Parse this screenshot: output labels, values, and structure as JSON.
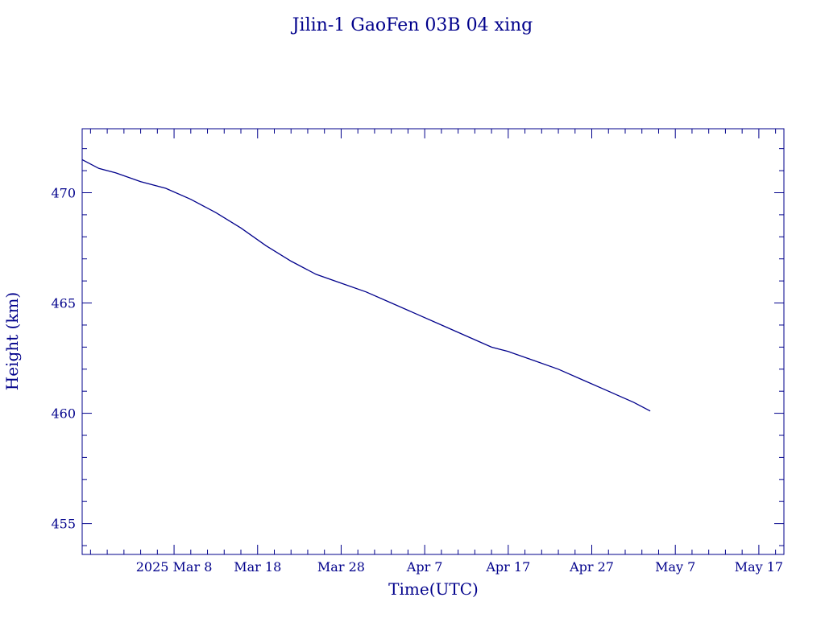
{
  "chart_data": {
    "type": "line",
    "title": "Jilin-1 GaoFen 03B 04 xing",
    "xlabel": "Time(UTC)",
    "ylabel": "Height (km)",
    "x_ticks": [
      "2025 Mar  8",
      "Mar 18",
      "Mar 28",
      "Apr  7",
      "Apr 17",
      "Apr 27",
      "May  7",
      "May 17"
    ],
    "xlim": [
      "2025-02-25",
      "2025-05-20"
    ],
    "ylim": [
      453.6,
      472.9
    ],
    "y_ticks": [
      455,
      460,
      465,
      470
    ],
    "grid": false,
    "color": "#00008b",
    "series": [
      {
        "x": [
          "2025-02-25",
          "2025-02-27",
          "2025-03-01",
          "2025-03-04",
          "2025-03-07",
          "2025-03-10",
          "2025-03-13",
          "2025-03-16",
          "2025-03-19",
          "2025-03-22",
          "2025-03-25",
          "2025-03-28",
          "2025-03-31",
          "2025-04-03",
          "2025-04-06",
          "2025-04-09",
          "2025-04-12",
          "2025-04-15",
          "2025-04-16",
          "2025-04-17",
          "2025-04-20",
          "2025-04-23",
          "2025-04-26",
          "2025-04-29",
          "2025-05-02",
          "2025-05-04"
        ],
        "y": [
          471.5,
          471.1,
          470.9,
          470.5,
          470.2,
          469.7,
          469.1,
          468.4,
          467.6,
          466.9,
          466.3,
          465.9,
          465.5,
          465.0,
          464.5,
          464.0,
          463.5,
          463.0,
          462.9,
          462.8,
          462.4,
          462.0,
          461.5,
          461.0,
          460.5,
          460.1
        ]
      }
    ]
  }
}
